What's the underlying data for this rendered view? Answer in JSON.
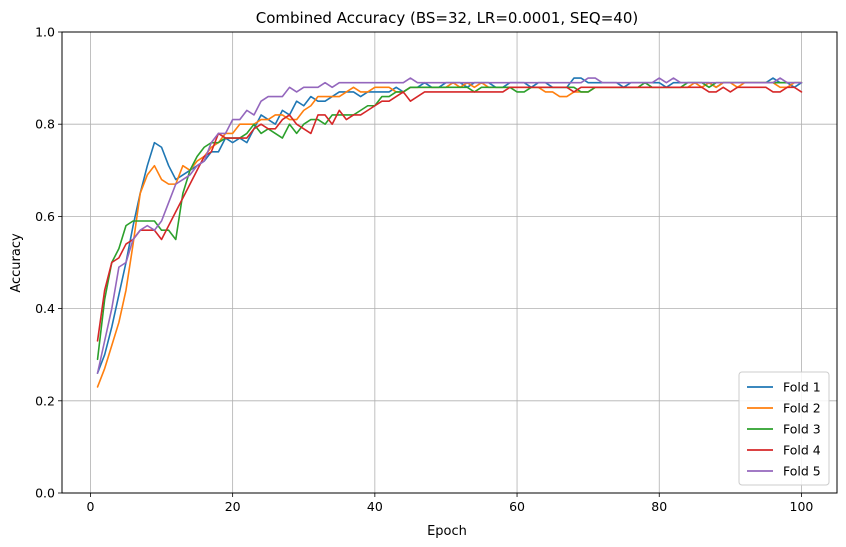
{
  "chart_data": {
    "type": "line",
    "title": "Combined Accuracy (BS=32, LR=0.0001, SEQ=40)",
    "xlabel": "Epoch",
    "ylabel": "Accuracy",
    "xlim": [
      -4,
      105
    ],
    "ylim": [
      0.0,
      1.0
    ],
    "xticks": [
      0,
      20,
      40,
      60,
      80,
      100
    ],
    "yticks": [
      0.0,
      0.2,
      0.4,
      0.6,
      0.8,
      1.0
    ],
    "xtick_labels": [
      "0",
      "20",
      "40",
      "60",
      "80",
      "100"
    ],
    "ytick_labels": [
      "0.0",
      "0.2",
      "0.4",
      "0.6",
      "0.8",
      "1.0"
    ],
    "grid": true,
    "legend_position": "bottom-right",
    "x": [
      1,
      2,
      3,
      4,
      5,
      6,
      7,
      8,
      9,
      10,
      11,
      12,
      13,
      14,
      15,
      16,
      17,
      18,
      19,
      20,
      21,
      22,
      23,
      24,
      25,
      26,
      27,
      28,
      29,
      30,
      31,
      32,
      33,
      34,
      35,
      36,
      37,
      38,
      39,
      40,
      41,
      42,
      43,
      44,
      45,
      46,
      47,
      48,
      49,
      50,
      51,
      52,
      53,
      54,
      55,
      56,
      57,
      58,
      59,
      60,
      61,
      62,
      63,
      64,
      65,
      66,
      67,
      68,
      69,
      70,
      71,
      72,
      73,
      74,
      75,
      76,
      77,
      78,
      79,
      80,
      81,
      82,
      83,
      84,
      85,
      86,
      87,
      88,
      89,
      90,
      91,
      92,
      93,
      94,
      95,
      96,
      97,
      98,
      99,
      100
    ],
    "series": [
      {
        "name": "Fold 1",
        "color": "#1f77b4",
        "values": [
          0.26,
          0.3,
          0.36,
          0.43,
          0.5,
          0.58,
          0.65,
          0.71,
          0.76,
          0.75,
          0.71,
          0.68,
          0.69,
          0.7,
          0.71,
          0.72,
          0.74,
          0.74,
          0.77,
          0.76,
          0.77,
          0.76,
          0.79,
          0.82,
          0.81,
          0.8,
          0.83,
          0.82,
          0.85,
          0.84,
          0.86,
          0.85,
          0.85,
          0.86,
          0.87,
          0.87,
          0.87,
          0.86,
          0.87,
          0.87,
          0.87,
          0.87,
          0.88,
          0.87,
          0.88,
          0.88,
          0.89,
          0.88,
          0.88,
          0.89,
          0.89,
          0.89,
          0.88,
          0.89,
          0.89,
          0.89,
          0.88,
          0.88,
          0.89,
          0.89,
          0.89,
          0.88,
          0.89,
          0.89,
          0.88,
          0.88,
          0.88,
          0.9,
          0.9,
          0.89,
          0.89,
          0.89,
          0.89,
          0.89,
          0.88,
          0.89,
          0.89,
          0.89,
          0.89,
          0.89,
          0.88,
          0.89,
          0.89,
          0.89,
          0.89,
          0.89,
          0.89,
          0.88,
          0.89,
          0.89,
          0.89,
          0.89,
          0.89,
          0.89,
          0.89,
          0.9,
          0.89,
          0.89,
          0.88,
          0.89
        ]
      },
      {
        "name": "Fold 2",
        "color": "#ff7f0e",
        "values": [
          0.23,
          0.27,
          0.32,
          0.37,
          0.44,
          0.54,
          0.65,
          0.69,
          0.71,
          0.68,
          0.67,
          0.67,
          0.71,
          0.7,
          0.72,
          0.73,
          0.75,
          0.76,
          0.78,
          0.78,
          0.8,
          0.8,
          0.8,
          0.81,
          0.81,
          0.82,
          0.82,
          0.81,
          0.81,
          0.83,
          0.84,
          0.86,
          0.86,
          0.86,
          0.86,
          0.87,
          0.88,
          0.87,
          0.87,
          0.88,
          0.88,
          0.88,
          0.87,
          0.87,
          0.88,
          0.88,
          0.88,
          0.88,
          0.88,
          0.88,
          0.89,
          0.88,
          0.89,
          0.88,
          0.89,
          0.88,
          0.88,
          0.88,
          0.88,
          0.88,
          0.88,
          0.88,
          0.88,
          0.87,
          0.87,
          0.86,
          0.86,
          0.87,
          0.87,
          0.87,
          0.88,
          0.88,
          0.88,
          0.88,
          0.88,
          0.88,
          0.88,
          0.88,
          0.88,
          0.88,
          0.88,
          0.88,
          0.88,
          0.88,
          0.89,
          0.88,
          0.89,
          0.88,
          0.89,
          0.89,
          0.88,
          0.89,
          0.89,
          0.89,
          0.89,
          0.89,
          0.88,
          0.88,
          0.89,
          0.89
        ]
      },
      {
        "name": "Fold 3",
        "color": "#2ca02c",
        "values": [
          0.29,
          0.42,
          0.5,
          0.53,
          0.58,
          0.59,
          0.59,
          0.59,
          0.59,
          0.57,
          0.57,
          0.55,
          0.65,
          0.7,
          0.73,
          0.75,
          0.76,
          0.76,
          0.77,
          0.77,
          0.77,
          0.78,
          0.8,
          0.78,
          0.79,
          0.78,
          0.77,
          0.8,
          0.78,
          0.8,
          0.81,
          0.81,
          0.8,
          0.82,
          0.82,
          0.82,
          0.82,
          0.83,
          0.84,
          0.84,
          0.86,
          0.86,
          0.87,
          0.87,
          0.88,
          0.88,
          0.88,
          0.88,
          0.88,
          0.88,
          0.88,
          0.88,
          0.88,
          0.87,
          0.88,
          0.88,
          0.88,
          0.88,
          0.88,
          0.87,
          0.87,
          0.88,
          0.88,
          0.88,
          0.88,
          0.88,
          0.88,
          0.88,
          0.87,
          0.87,
          0.88,
          0.88,
          0.88,
          0.88,
          0.88,
          0.88,
          0.88,
          0.89,
          0.88,
          0.88,
          0.88,
          0.88,
          0.88,
          0.89,
          0.89,
          0.89,
          0.88,
          0.89,
          0.89,
          0.89,
          0.89,
          0.89,
          0.89,
          0.89,
          0.89,
          0.89,
          0.89,
          0.89,
          0.89,
          0.89
        ]
      },
      {
        "name": "Fold 4",
        "color": "#d62728",
        "values": [
          0.33,
          0.44,
          0.5,
          0.51,
          0.54,
          0.55,
          0.57,
          0.57,
          0.57,
          0.55,
          0.58,
          0.61,
          0.64,
          0.67,
          0.7,
          0.73,
          0.74,
          0.78,
          0.77,
          0.77,
          0.77,
          0.77,
          0.79,
          0.8,
          0.79,
          0.79,
          0.81,
          0.82,
          0.8,
          0.79,
          0.78,
          0.82,
          0.82,
          0.8,
          0.83,
          0.81,
          0.82,
          0.82,
          0.83,
          0.84,
          0.85,
          0.85,
          0.86,
          0.87,
          0.85,
          0.86,
          0.87,
          0.87,
          0.87,
          0.87,
          0.87,
          0.87,
          0.87,
          0.87,
          0.87,
          0.87,
          0.87,
          0.87,
          0.88,
          0.88,
          0.88,
          0.88,
          0.88,
          0.88,
          0.88,
          0.88,
          0.88,
          0.87,
          0.88,
          0.88,
          0.88,
          0.88,
          0.88,
          0.88,
          0.88,
          0.88,
          0.88,
          0.88,
          0.88,
          0.88,
          0.88,
          0.88,
          0.88,
          0.88,
          0.88,
          0.88,
          0.87,
          0.87,
          0.88,
          0.87,
          0.88,
          0.88,
          0.88,
          0.88,
          0.88,
          0.87,
          0.87,
          0.88,
          0.88,
          0.87
        ]
      },
      {
        "name": "Fold 5",
        "color": "#9467bd",
        "values": [
          0.26,
          0.33,
          0.4,
          0.49,
          0.5,
          0.55,
          0.57,
          0.58,
          0.57,
          0.59,
          0.63,
          0.67,
          0.68,
          0.69,
          0.71,
          0.72,
          0.76,
          0.78,
          0.78,
          0.81,
          0.81,
          0.83,
          0.82,
          0.85,
          0.86,
          0.86,
          0.86,
          0.88,
          0.87,
          0.88,
          0.88,
          0.88,
          0.89,
          0.88,
          0.89,
          0.89,
          0.89,
          0.89,
          0.89,
          0.89,
          0.89,
          0.89,
          0.89,
          0.89,
          0.9,
          0.89,
          0.89,
          0.89,
          0.89,
          0.89,
          0.89,
          0.89,
          0.89,
          0.89,
          0.89,
          0.89,
          0.89,
          0.89,
          0.89,
          0.89,
          0.89,
          0.89,
          0.89,
          0.89,
          0.89,
          0.89,
          0.89,
          0.89,
          0.89,
          0.9,
          0.9,
          0.89,
          0.89,
          0.89,
          0.89,
          0.89,
          0.89,
          0.89,
          0.89,
          0.9,
          0.89,
          0.9,
          0.89,
          0.89,
          0.89,
          0.89,
          0.89,
          0.89,
          0.89,
          0.89,
          0.89,
          0.89,
          0.89,
          0.89,
          0.89,
          0.89,
          0.9,
          0.89,
          0.89,
          0.89
        ]
      }
    ]
  }
}
